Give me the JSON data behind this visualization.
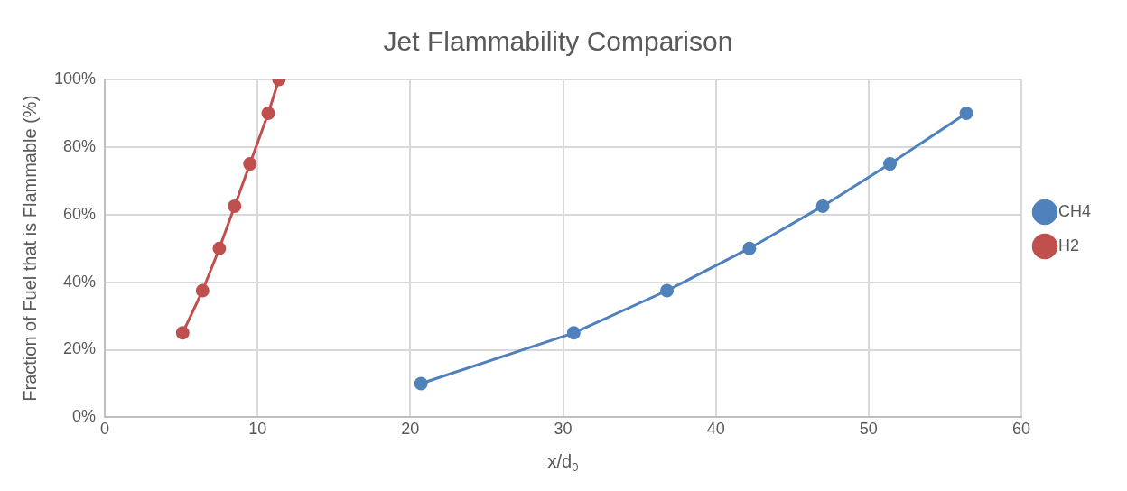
{
  "chart_data": {
    "type": "line",
    "title": "Jet Flammability Comparison",
    "xlabel": "x/d$_{0}$",
    "ylabel": "Fraction of Fuel that is Flammable (%)",
    "series": [
      {
        "name": "CH4",
        "color": "#4f81bd",
        "x": [
          20.7,
          30.7,
          36.8,
          42.2,
          47.0,
          51.4,
          56.4
        ],
        "values": [
          10,
          25,
          37.5,
          50,
          62.5,
          75,
          90
        ]
      },
      {
        "name": "H2",
        "color": "#c0504d",
        "x": [
          5.1,
          6.4,
          7.5,
          8.5,
          9.5,
          10.7,
          11.4
        ],
        "values": [
          25,
          37.5,
          50,
          62.5,
          75,
          90,
          100
        ]
      }
    ],
    "xlim": [
      0,
      60
    ],
    "xticks": [
      0,
      10,
      20,
      30,
      40,
      50,
      60
    ],
    "ylim": [
      0,
      100
    ],
    "yticks": [
      {
        "value": 0,
        "label": "0%"
      },
      {
        "value": 20,
        "label": "20%"
      },
      {
        "value": 40,
        "label": "40%"
      },
      {
        "value": 60,
        "label": "60%"
      },
      {
        "value": 80,
        "label": "80%"
      },
      {
        "value": 100,
        "label": "100%"
      }
    ],
    "grid": true,
    "legend": "right",
    "marker": "circle",
    "line_style": "solid"
  }
}
